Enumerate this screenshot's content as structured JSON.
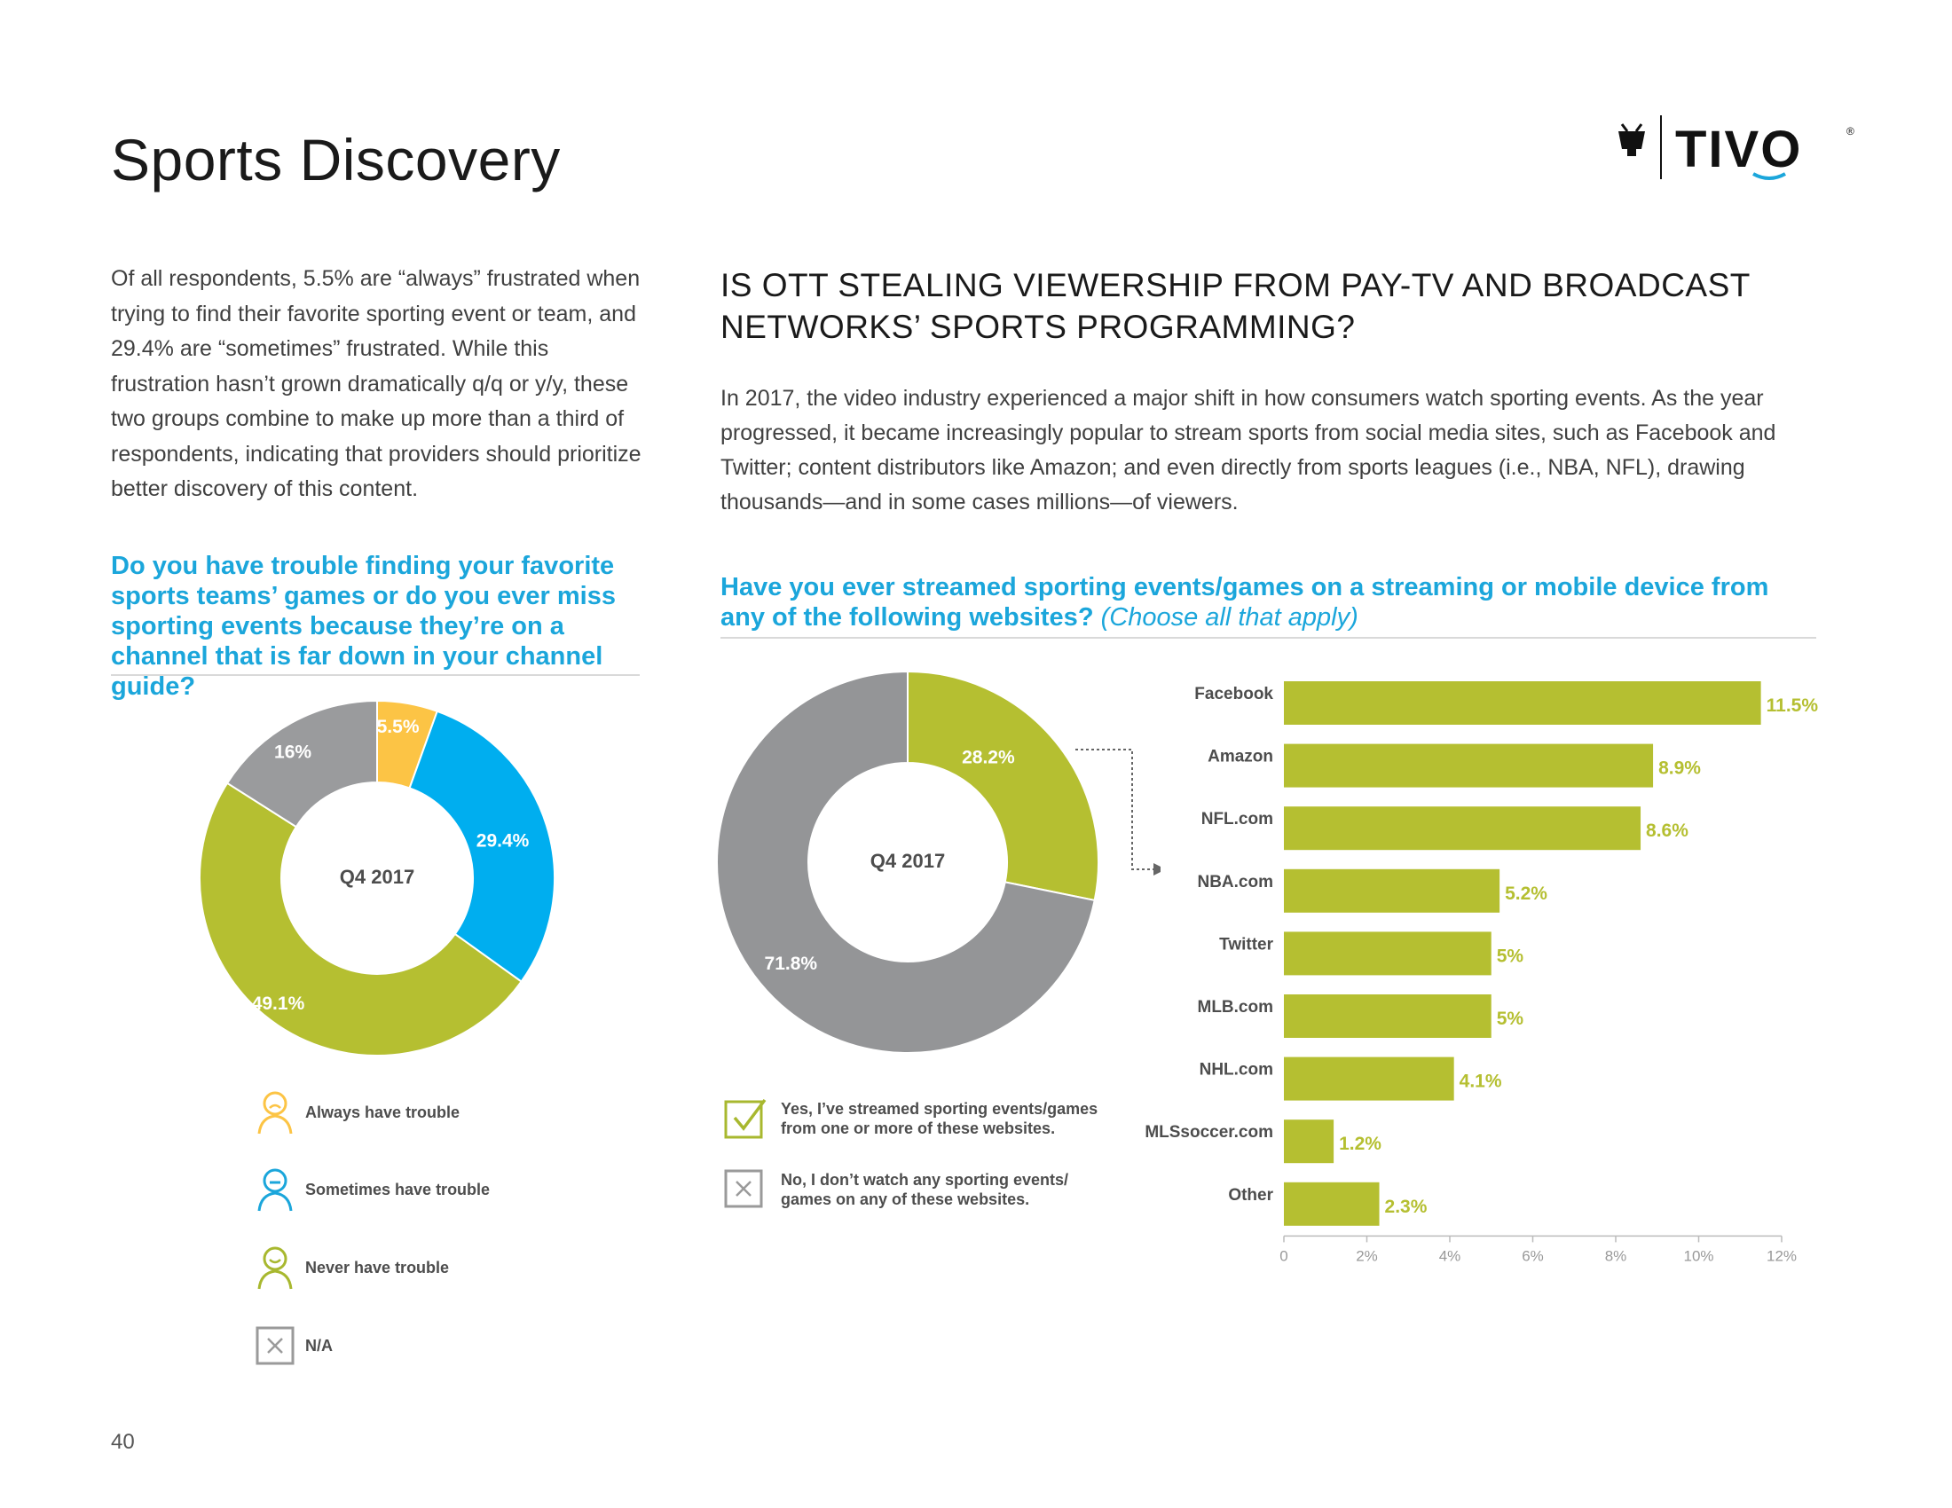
{
  "page": {
    "title": "Sports Discovery",
    "number": "40",
    "logo_text": "TIVO",
    "logo_mark": "®"
  },
  "intro": {
    "text": "Of all respondents, 5.5% are “always” frustrated when trying to find their favorite sporting event or team, and 29.4% are “sometimes” frustrated. While this frustration hasn’t grown dramatically q/q or y/y, these two groups combine to make up more than a third of respondents, indicating that providers should prioritize better discovery of this content."
  },
  "section": {
    "heading": "IS OTT STEALING VIEWERSHIP FROM PAY-TV AND BROADCAST NETWORKS’ SPORTS PROGRAMMING?",
    "body": "In 2017, the video industry experienced a major shift in how consumers watch sporting events. As the year progressed, it became increasingly popular to stream sports from social media sites, such as Facebook and Twitter; content distributors like Amazon; and even directly from sports leagues (i.e., NBA, NFL), drawing thousands—and in some cases millions—of viewers."
  },
  "question1": {
    "text": "Do you have trouble finding your favorite sports teams’ games or do you ever miss sporting events because they’re on a channel that is far down in your channel guide?"
  },
  "question2": {
    "text": "Have you ever streamed sporting events/games on a streaming or mobile device from any of the following websites?",
    "sub": "(Choose all that apply)"
  },
  "legend1": [
    {
      "label": "Always have trouble",
      "icon": "person-sad-icon",
      "color": "#fcc445"
    },
    {
      "label": "Sometimes have trouble",
      "icon": "person-neutral-icon",
      "color": "#1ba6db"
    },
    {
      "label": "Never have trouble",
      "icon": "person-happy-icon",
      "color": "#a8b82f"
    },
    {
      "label": "N/A",
      "icon": "x-box-icon",
      "color": "#9a9a9a"
    }
  ],
  "legend2": [
    {
      "label": "Yes, I’ve streamed sporting events/games from one or more of these websites.",
      "icon": "checkbox-check-icon",
      "color": "#a8b82f"
    },
    {
      "label": "No, I don’t watch any sporting events/ games on any of these websites.",
      "icon": "checkbox-x-icon",
      "color": "#9a9a9a"
    }
  ],
  "chart_data": [
    {
      "type": "pie",
      "variant": "donut",
      "center_label": "Q4 2017",
      "slices": [
        {
          "name": "Always have trouble",
          "value": 5.5,
          "label": "5.5%",
          "color": "#fcc445"
        },
        {
          "name": "Sometimes have trouble",
          "value": 29.4,
          "label": "29.4%",
          "color": "#00aeef"
        },
        {
          "name": "Never have trouble",
          "value": 49.1,
          "label": "49.1%",
          "color": "#b5bf31"
        },
        {
          "name": "N/A",
          "value": 16,
          "label": "16%",
          "color": "#9a9b9d"
        }
      ]
    },
    {
      "type": "pie",
      "variant": "donut",
      "center_label": "Q4 2017",
      "slices": [
        {
          "name": "Yes, I’ve streamed sporting events/games from one or more of these websites.",
          "value": 28.2,
          "label": "28.2%",
          "color": "#b5bf31"
        },
        {
          "name": "No, I don’t watch any sporting events/ games on any of these websites.",
          "value": 71.8,
          "label": "71.8%",
          "color": "#949597"
        }
      ]
    },
    {
      "type": "bar",
      "orientation": "horizontal",
      "categories": [
        "Facebook",
        "Amazon",
        "NFL.com",
        "NBA.com",
        "Twitter",
        "MLB.com",
        "NHL.com",
        "MLSsoccer.com",
        "Other"
      ],
      "values": [
        11.5,
        8.9,
        8.6,
        5.2,
        5,
        5,
        4.1,
        1.2,
        2.3
      ],
      "value_labels": [
        "11.5%",
        "8.9%",
        "8.6%",
        "5.2%",
        "5%",
        "5%",
        "4.1%",
        "1.2%",
        "2.3%"
      ],
      "xlim": [
        0,
        12
      ],
      "xticks": [
        0,
        2,
        4,
        6,
        8,
        10,
        12
      ],
      "xtick_labels": [
        "0",
        "2%",
        "4%",
        "6%",
        "8%",
        "10%",
        "12%"
      ],
      "color": "#b5bf31",
      "grid": false
    }
  ]
}
